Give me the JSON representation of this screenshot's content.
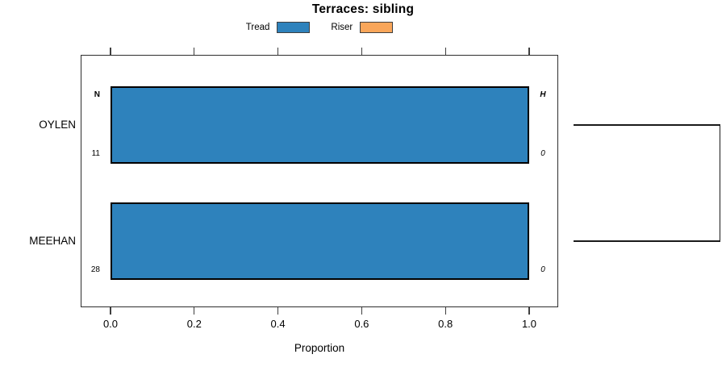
{
  "title": "Terraces: sibling",
  "legend": {
    "items": [
      {
        "label": "Tread",
        "color": "#2E82BC"
      },
      {
        "label": "Riser",
        "color": "#F9A65A"
      }
    ]
  },
  "chart_data": {
    "type": "bar",
    "orientation": "horizontal",
    "stacked": true,
    "title": "Terraces: sibling",
    "xlabel": "Proportion",
    "xlim": [
      0.0,
      1.0
    ],
    "xticks": [
      0.0,
      0.2,
      0.4,
      0.6,
      0.8,
      1.0
    ],
    "xtick_labels": [
      "0.0",
      "0.2",
      "0.4",
      "0.6",
      "0.8",
      "1.0"
    ],
    "categories": [
      "OYLEN",
      "MEEHAN"
    ],
    "series": [
      {
        "name": "Tread",
        "color": "#2E82BC",
        "values": [
          1.0,
          1.0
        ]
      },
      {
        "name": "Riser",
        "color": "#F9A65A",
        "values": [
          0.0,
          0.0
        ]
      }
    ],
    "annotations": {
      "n_header": "N",
      "h_header": "H",
      "n_values": [
        "11",
        "28"
      ],
      "h_values": [
        "0",
        "0"
      ]
    },
    "grid": false,
    "legend_position": "top",
    "dendrogram_right": true
  },
  "colors": {
    "bar_border": "#000000",
    "box_border": "#2e2e2e",
    "tick": "#3f3f3f",
    "dendrogram": "#1a1a1a"
  }
}
